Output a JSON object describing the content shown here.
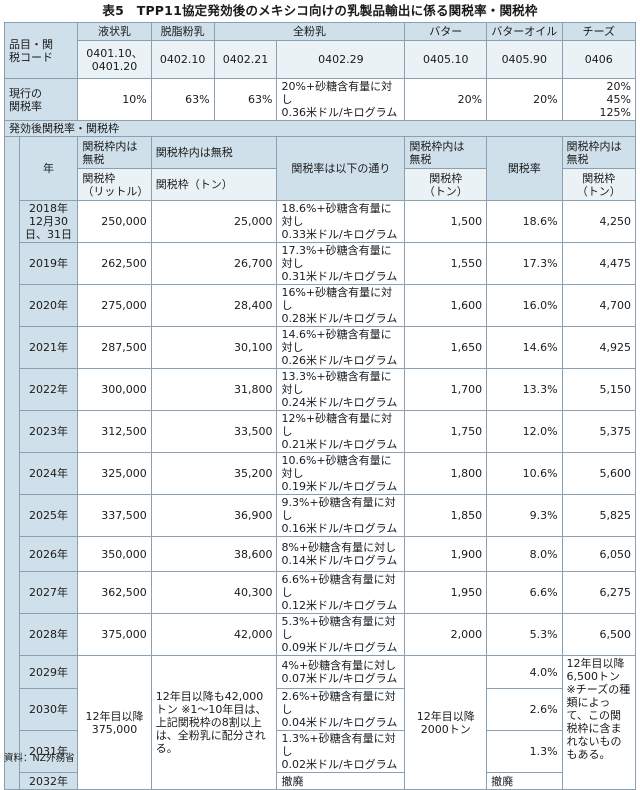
{
  "title": "表5　TPP11協定発効後のメキシコ向けの乳製品輸出に係る関税率・関税枠",
  "header": {
    "cat_label": "品目・関\n税コード",
    "cols": [
      {
        "name": "液状乳",
        "code": "0401.10、\n0401.20"
      },
      {
        "name": "脱脂粉乳",
        "code": "0402.10"
      },
      {
        "name": "全粉乳",
        "code_a": "0402.21",
        "code_b": "0402.29"
      },
      {
        "name": "バター",
        "code": "0405.10"
      },
      {
        "name": "バターオイル",
        "code": "0405.90"
      },
      {
        "name": "チーズ",
        "code": "0406"
      }
    ]
  },
  "current": {
    "label": "現行の\n関税率",
    "liquid": "10%",
    "skim": "63%",
    "whole_a": "63%",
    "whole_b": "20%+砂糖含有量に対し\n0.36米ドル/キログラム",
    "butter": "20%",
    "butteroil": "20%",
    "cheese": "20%\n45%\n125%"
  },
  "after_label": "発効後関税率・関税枠",
  "sub": {
    "year": "年",
    "liquid_top": "関税枠内は\n無税",
    "liquid_bot": "関税枠\n（リットル）",
    "skim_top": "関税枠内は無税",
    "skim_bot": "関税枠（トン）",
    "whole": "関税率は以下の通り",
    "butter_top": "関税枠内は\n無税",
    "butter_bot": "関税枠\n（トン）",
    "butteroil": "関税率",
    "cheese_top": "関税枠内は\n無税",
    "cheese_bot": "関税枠\n（トン）"
  },
  "rows": [
    {
      "year": "2018年\n12月30\n日、31日",
      "liquid": "250,000",
      "skim": "25,000",
      "whole": "18.6%+砂糖含有量に対し\n0.33米ドル/キログラム",
      "butter": "1,500",
      "butteroil": "18.6%",
      "cheese": "4,250"
    },
    {
      "year": "2019年",
      "liquid": "262,500",
      "skim": "26,700",
      "whole": "17.3%+砂糖含有量に対し\n0.31米ドル/キログラム",
      "butter": "1,550",
      "butteroil": "17.3%",
      "cheese": "4,475"
    },
    {
      "year": "2020年",
      "liquid": "275,000",
      "skim": "28,400",
      "whole": "16%+砂糖含有量に対し\n0.28米ドル/キログラム",
      "butter": "1,600",
      "butteroil": "16.0%",
      "cheese": "4,700"
    },
    {
      "year": "2021年",
      "liquid": "287,500",
      "skim": "30,100",
      "whole": "14.6%+砂糖含有量に対し\n0.26米ドル/キログラム",
      "butter": "1,650",
      "butteroil": "14.6%",
      "cheese": "4,925"
    },
    {
      "year": "2022年",
      "liquid": "300,000",
      "skim": "31,800",
      "whole": "13.3%+砂糖含有量に対し\n0.24米ドル/キログラム",
      "butter": "1,700",
      "butteroil": "13.3%",
      "cheese": "5,150"
    },
    {
      "year": "2023年",
      "liquid": "312,500",
      "skim": "33,500",
      "whole": "12%+砂糖含有量に対し\n0.21米ドル/キログラム",
      "butter": "1,750",
      "butteroil": "12.0%",
      "cheese": "5,375"
    },
    {
      "year": "2024年",
      "liquid": "325,000",
      "skim": "35,200",
      "whole": "10.6%+砂糖含有量に対し\n0.19米ドル/キログラム",
      "butter": "1,800",
      "butteroil": "10.6%",
      "cheese": "5,600"
    },
    {
      "year": "2025年",
      "liquid": "337,500",
      "skim": "36,900",
      "whole": "9.3%+砂糖含有量に対し\n0.16米ドル/キログラム",
      "butter": "1,850",
      "butteroil": "9.3%",
      "cheese": "5,825"
    },
    {
      "year": "2026年",
      "liquid": "350,000",
      "skim": "38,600",
      "whole": "8%+砂糖含有量に対し\n0.14米ドル/キログラム",
      "butter": "1,900",
      "butteroil": "8.0%",
      "cheese": "6,050"
    },
    {
      "year": "2027年",
      "liquid": "362,500",
      "skim": "40,300",
      "whole": "6.6%+砂糖含有量に対し\n0.12米ドル/キログラム",
      "butter": "1,950",
      "butteroil": "6.6%",
      "cheese": "6,275"
    },
    {
      "year": "2028年",
      "liquid": "375,000",
      "skim": "42,000",
      "whole": "5.3%+砂糖含有量に対し\n0.09米ドル/キログラム",
      "butter": "2,000",
      "butteroil": "5.3%",
      "cheese": "6,500"
    }
  ],
  "late": {
    "years": [
      "2029年",
      "2030年",
      "2031年",
      "2032年"
    ],
    "liquid": "12年目以降\n375,000",
    "skim": "12年目以降も42,000トン ※1～10年目は、上記関税枠の8割以上は、全粉乳に配分される。",
    "whole": [
      "4%+砂糖含有量に対し\n0.07米ドル/キログラム",
      "2.6%+砂糖含有量に対し\n0.04米ドル/キログラム",
      "1.3%+砂糖含有量に対し\n0.02米ドル/キログラム",
      "撤廃"
    ],
    "butter": "12年目以降\n2000トン",
    "butteroil": [
      "4.0%",
      "2.6%",
      "1.3%",
      "撤廃"
    ],
    "cheese": "12年目以降6,500トン ※チーズの種類によって、この関税枠に含まれないものもある。"
  },
  "source": "資料：NZ外務省"
}
